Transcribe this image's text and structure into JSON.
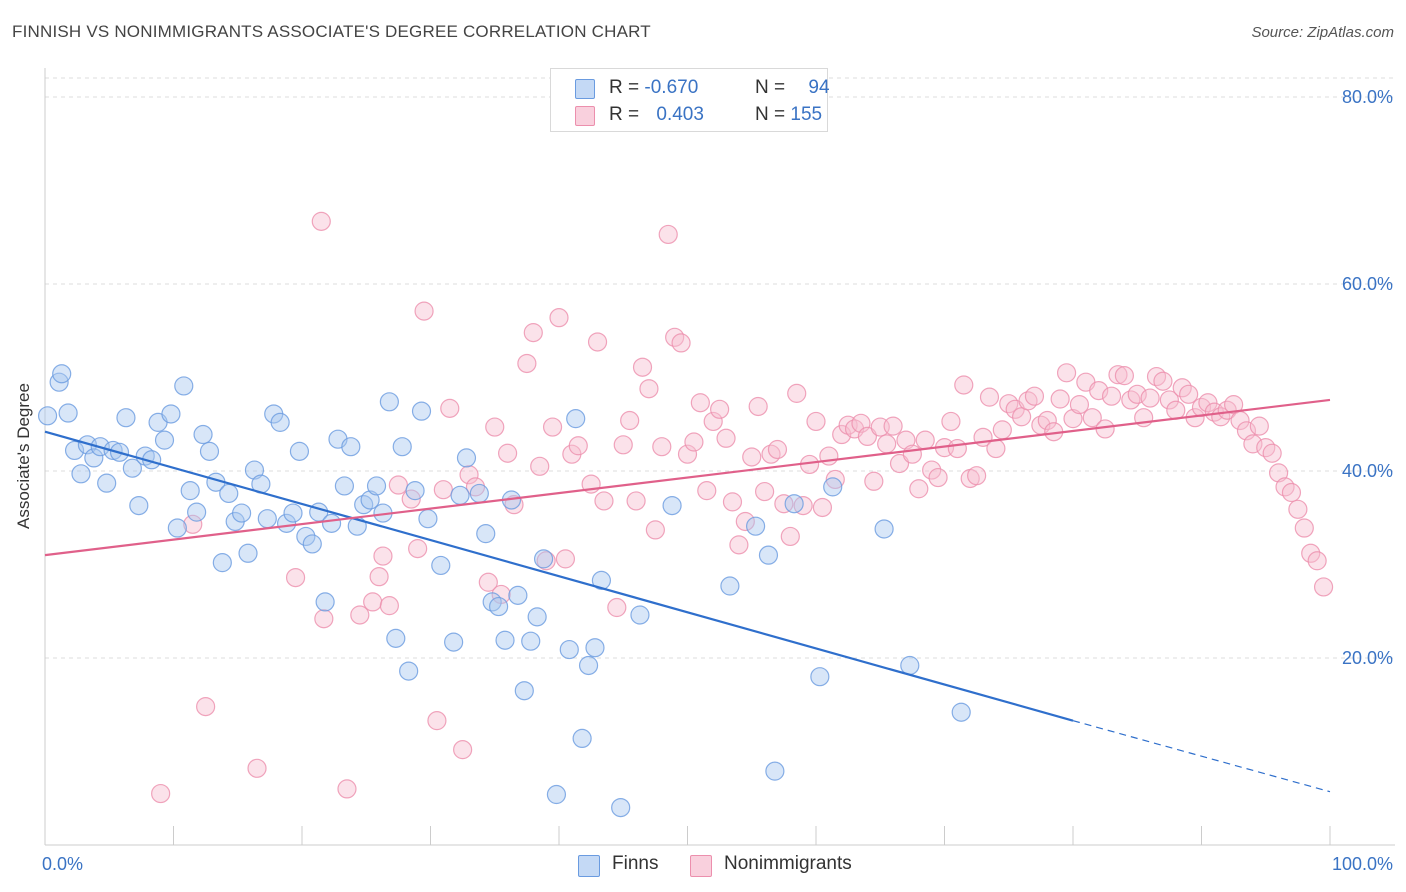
{
  "header": {
    "title": "FINNISH VS NONIMMIGRANTS ASSOCIATE'S DEGREE CORRELATION CHART",
    "source": "Source: ZipAtlas.com"
  },
  "legend": {
    "rows": [
      {
        "r_label": "R =",
        "r_value": "-0.670",
        "n_label": "N =",
        "n_value": "94"
      },
      {
        "r_label": "R =",
        "r_value": "0.403",
        "n_label": "N =",
        "n_value": "155"
      }
    ]
  },
  "bottom_legend": {
    "items": [
      {
        "label": "Finns"
      },
      {
        "label": "Nonimmigrants"
      }
    ]
  },
  "colors": {
    "finns_fill": "#a9c8f0",
    "finns_stroke": "#6a9be0",
    "finns_line": "#2f6fcc",
    "nonimm_fill": "#f7bfd1",
    "nonimm_stroke": "#ec8fad",
    "nonimm_line": "#e0608a",
    "tick_label": "#3a73c4",
    "grid": "#dddddd"
  },
  "chart_data": {
    "type": "scatter",
    "title": "FINNISH VS NONIMMIGRANTS ASSOCIATE'S DEGREE CORRELATION CHART",
    "xlabel": "",
    "ylabel": "Associate's Degree",
    "xlim": [
      0,
      100
    ],
    "ylim": [
      0,
      80
    ],
    "x_tick_labels": [
      "0.0%",
      "100.0%"
    ],
    "y_ticks": [
      20,
      40,
      60,
      80
    ],
    "y_tick_labels": [
      "20.0%",
      "40.0%",
      "60.0%",
      "80.0%"
    ],
    "grid": true,
    "legend_position": "top-center",
    "series": [
      {
        "name": "Finns",
        "r": -0.67,
        "n": 94,
        "trend": {
          "x0": 0,
          "y0": 44.2,
          "x1": 80,
          "y1": 13.3,
          "dashed_to_x": 100,
          "dashed_to_y": 5.7
        },
        "points": [
          [
            0.2,
            45.9
          ],
          [
            1.1,
            49.5
          ],
          [
            1.3,
            50.4
          ],
          [
            1.8,
            46.2
          ],
          [
            2.3,
            42.2
          ],
          [
            2.8,
            39.7
          ],
          [
            3.3,
            42.8
          ],
          [
            3.8,
            41.4
          ],
          [
            4.3,
            42.6
          ],
          [
            4.8,
            38.7
          ],
          [
            5.3,
            42.2
          ],
          [
            5.8,
            42.0
          ],
          [
            6.3,
            45.7
          ],
          [
            6.8,
            40.3
          ],
          [
            7.3,
            36.3
          ],
          [
            7.8,
            41.6
          ],
          [
            8.3,
            41.2
          ],
          [
            8.8,
            45.2
          ],
          [
            9.3,
            43.3
          ],
          [
            9.8,
            46.1
          ],
          [
            10.3,
            33.9
          ],
          [
            10.8,
            49.1
          ],
          [
            11.3,
            37.9
          ],
          [
            11.8,
            35.6
          ],
          [
            12.3,
            43.9
          ],
          [
            12.8,
            42.1
          ],
          [
            13.3,
            38.8
          ],
          [
            13.8,
            30.2
          ],
          [
            14.3,
            37.6
          ],
          [
            14.8,
            34.6
          ],
          [
            15.3,
            35.5
          ],
          [
            15.8,
            31.2
          ],
          [
            16.3,
            40.1
          ],
          [
            16.8,
            38.6
          ],
          [
            17.3,
            34.9
          ],
          [
            17.8,
            46.1
          ],
          [
            18.3,
            45.2
          ],
          [
            18.8,
            34.4
          ],
          [
            19.3,
            35.5
          ],
          [
            19.8,
            42.1
          ],
          [
            20.3,
            33.0
          ],
          [
            20.8,
            32.2
          ],
          [
            21.3,
            35.6
          ],
          [
            21.8,
            26.0
          ],
          [
            22.3,
            34.4
          ],
          [
            22.8,
            43.4
          ],
          [
            23.3,
            38.4
          ],
          [
            23.8,
            42.6
          ],
          [
            24.3,
            34.1
          ],
          [
            24.8,
            36.4
          ],
          [
            25.3,
            36.9
          ],
          [
            25.8,
            38.4
          ],
          [
            26.3,
            35.5
          ],
          [
            26.8,
            47.4
          ],
          [
            27.3,
            22.1
          ],
          [
            27.8,
            42.6
          ],
          [
            28.3,
            18.6
          ],
          [
            28.8,
            37.9
          ],
          [
            29.3,
            46.4
          ],
          [
            29.8,
            34.9
          ],
          [
            30.8,
            29.9
          ],
          [
            31.8,
            21.7
          ],
          [
            32.3,
            37.4
          ],
          [
            32.8,
            41.4
          ],
          [
            33.8,
            37.6
          ],
          [
            34.3,
            33.3
          ],
          [
            34.8,
            26.0
          ],
          [
            35.3,
            25.5
          ],
          [
            35.8,
            21.9
          ],
          [
            36.3,
            36.9
          ],
          [
            36.8,
            26.7
          ],
          [
            37.3,
            16.5
          ],
          [
            37.8,
            21.8
          ],
          [
            38.3,
            24.4
          ],
          [
            38.8,
            30.6
          ],
          [
            39.8,
            5.4
          ],
          [
            40.8,
            20.9
          ],
          [
            41.3,
            45.6
          ],
          [
            41.8,
            11.4
          ],
          [
            42.3,
            19.2
          ],
          [
            42.8,
            21.1
          ],
          [
            43.3,
            28.3
          ],
          [
            44.8,
            4.0
          ],
          [
            46.3,
            24.6
          ],
          [
            48.8,
            36.3
          ],
          [
            53.3,
            27.7
          ],
          [
            55.3,
            34.1
          ],
          [
            56.3,
            31.0
          ],
          [
            56.8,
            7.9
          ],
          [
            58.3,
            36.5
          ],
          [
            60.3,
            18.0
          ],
          [
            61.3,
            38.3
          ],
          [
            65.3,
            33.8
          ],
          [
            67.3,
            19.2
          ],
          [
            71.3,
            14.2
          ]
        ]
      },
      {
        "name": "Nonimmigrants",
        "r": 0.403,
        "n": 155,
        "trend": {
          "x0": 0,
          "y0": 31.0,
          "x1": 100,
          "y1": 47.6
        },
        "points": [
          [
            9.0,
            5.5
          ],
          [
            11.5,
            34.3
          ],
          [
            12.5,
            14.8
          ],
          [
            16.5,
            8.2
          ],
          [
            19.5,
            28.6
          ],
          [
            21.5,
            66.7
          ],
          [
            21.7,
            24.2
          ],
          [
            23.5,
            6.0
          ],
          [
            24.5,
            24.6
          ],
          [
            25.5,
            26.0
          ],
          [
            26.0,
            28.7
          ],
          [
            26.3,
            30.9
          ],
          [
            26.8,
            25.6
          ],
          [
            27.5,
            38.5
          ],
          [
            28.5,
            37.0
          ],
          [
            29.0,
            31.7
          ],
          [
            29.5,
            57.1
          ],
          [
            30.5,
            13.3
          ],
          [
            31.0,
            38.0
          ],
          [
            31.5,
            46.7
          ],
          [
            32.5,
            10.2
          ],
          [
            33.0,
            39.6
          ],
          [
            33.5,
            38.3
          ],
          [
            34.5,
            28.1
          ],
          [
            35.0,
            44.7
          ],
          [
            35.5,
            26.8
          ],
          [
            36.0,
            41.9
          ],
          [
            36.5,
            36.4
          ],
          [
            37.5,
            51.5
          ],
          [
            38.0,
            54.8
          ],
          [
            38.5,
            40.5
          ],
          [
            39.5,
            44.7
          ],
          [
            40.0,
            56.4
          ],
          [
            40.5,
            30.6
          ],
          [
            41.0,
            41.8
          ],
          [
            41.5,
            42.7
          ],
          [
            42.5,
            38.6
          ],
          [
            43.0,
            53.8
          ],
          [
            43.5,
            36.8
          ],
          [
            44.5,
            25.4
          ],
          [
            45.0,
            42.8
          ],
          [
            45.5,
            45.4
          ],
          [
            46.0,
            36.8
          ],
          [
            46.5,
            51.1
          ],
          [
            47.0,
            48.8
          ],
          [
            47.5,
            33.7
          ],
          [
            48.0,
            42.6
          ],
          [
            48.5,
            65.3
          ],
          [
            49.0,
            54.3
          ],
          [
            49.5,
            53.7
          ],
          [
            50.0,
            41.8
          ],
          [
            50.5,
            43.1
          ],
          [
            51.0,
            47.3
          ],
          [
            51.5,
            37.9
          ],
          [
            52.0,
            45.3
          ],
          [
            52.5,
            46.6
          ],
          [
            53.0,
            43.5
          ],
          [
            53.5,
            36.7
          ],
          [
            54.0,
            32.1
          ],
          [
            54.5,
            34.6
          ],
          [
            55.0,
            41.5
          ],
          [
            55.5,
            46.9
          ],
          [
            56.0,
            37.8
          ],
          [
            56.5,
            41.8
          ],
          [
            57.0,
            42.3
          ],
          [
            57.5,
            36.5
          ],
          [
            58.0,
            33.0
          ],
          [
            58.5,
            48.3
          ],
          [
            59.0,
            36.3
          ],
          [
            59.5,
            40.7
          ],
          [
            60.0,
            45.3
          ],
          [
            60.5,
            36.1
          ],
          [
            61.0,
            41.6
          ],
          [
            61.5,
            39.1
          ],
          [
            62.0,
            43.9
          ],
          [
            62.5,
            44.9
          ],
          [
            63.0,
            44.5
          ],
          [
            63.5,
            45.1
          ],
          [
            64.0,
            43.7
          ],
          [
            64.5,
            38.9
          ],
          [
            65.0,
            44.7
          ],
          [
            65.5,
            42.9
          ],
          [
            66.0,
            44.8
          ],
          [
            66.5,
            40.8
          ],
          [
            67.0,
            43.3
          ],
          [
            67.5,
            41.8
          ],
          [
            68.0,
            38.1
          ],
          [
            68.5,
            43.3
          ],
          [
            69.0,
            40.1
          ],
          [
            69.5,
            39.3
          ],
          [
            70.0,
            42.5
          ],
          [
            70.5,
            45.3
          ],
          [
            71.0,
            42.4
          ],
          [
            71.5,
            49.2
          ],
          [
            72.0,
            39.2
          ],
          [
            72.5,
            39.5
          ],
          [
            73.0,
            43.6
          ],
          [
            73.5,
            47.9
          ],
          [
            74.0,
            42.4
          ],
          [
            74.5,
            44.4
          ],
          [
            75.0,
            47.2
          ],
          [
            75.5,
            46.6
          ],
          [
            76.0,
            45.8
          ],
          [
            76.5,
            47.5
          ],
          [
            77.0,
            48.0
          ],
          [
            77.5,
            44.9
          ],
          [
            78.0,
            45.4
          ],
          [
            78.5,
            44.2
          ],
          [
            79.0,
            47.7
          ],
          [
            79.5,
            50.5
          ],
          [
            80.0,
            45.6
          ],
          [
            80.5,
            47.1
          ],
          [
            81.0,
            49.5
          ],
          [
            81.5,
            45.7
          ],
          [
            82.0,
            48.6
          ],
          [
            82.5,
            44.5
          ],
          [
            83.0,
            48.0
          ],
          [
            83.5,
            50.3
          ],
          [
            84.0,
            50.2
          ],
          [
            84.5,
            47.6
          ],
          [
            85.0,
            48.2
          ],
          [
            85.5,
            45.7
          ],
          [
            86.0,
            47.8
          ],
          [
            86.5,
            50.1
          ],
          [
            87.0,
            49.6
          ],
          [
            87.5,
            47.6
          ],
          [
            88.0,
            46.5
          ],
          [
            88.5,
            48.9
          ],
          [
            89.0,
            48.2
          ],
          [
            89.5,
            45.7
          ],
          [
            90.0,
            46.8
          ],
          [
            90.5,
            47.3
          ],
          [
            91.0,
            46.3
          ],
          [
            91.5,
            45.8
          ],
          [
            92.0,
            46.5
          ],
          [
            92.5,
            47.1
          ],
          [
            93.0,
            45.4
          ],
          [
            93.5,
            44.3
          ],
          [
            94.0,
            42.9
          ],
          [
            94.5,
            44.8
          ],
          [
            95.0,
            42.5
          ],
          [
            95.5,
            41.9
          ],
          [
            96.0,
            39.8
          ],
          [
            96.5,
            38.3
          ],
          [
            97.0,
            37.7
          ],
          [
            97.5,
            35.9
          ],
          [
            98.0,
            33.9
          ],
          [
            98.5,
            31.2
          ],
          [
            99.0,
            30.4
          ],
          [
            99.5,
            27.6
          ],
          [
            39.0,
            30.4
          ]
        ]
      }
    ]
  }
}
